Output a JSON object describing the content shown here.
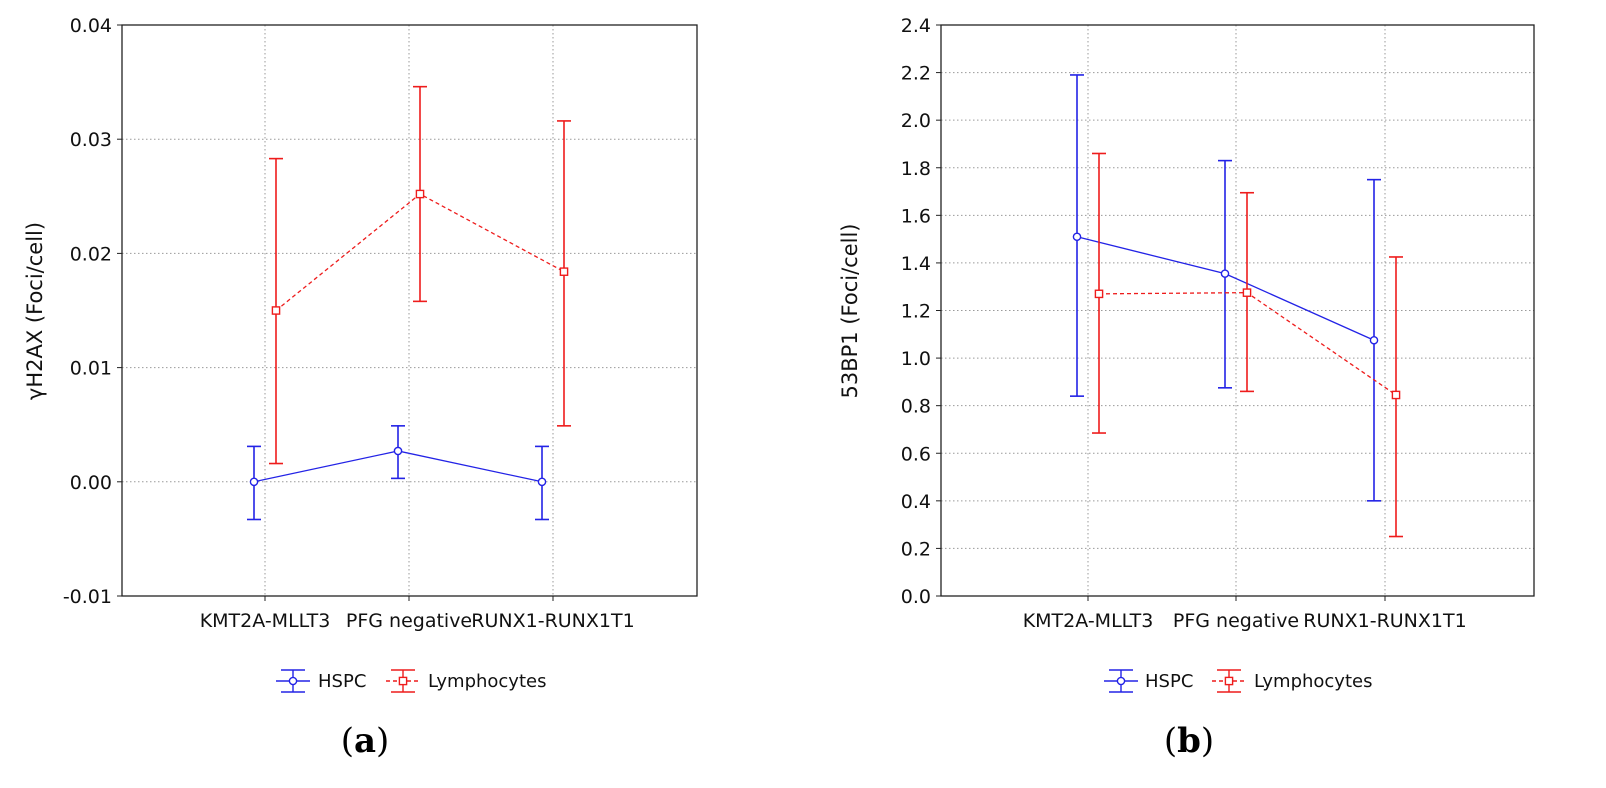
{
  "colors": {
    "hspc": "#2323e6",
    "lymphocytes": "#ee1c1c"
  },
  "chart_data": [
    {
      "type": "line",
      "caption": "(a)",
      "caption_letter": "a",
      "ylabel": "γH2AX (Foci/cell)",
      "ylim": [
        -0.01,
        0.04
      ],
      "yticks": [
        -0.01,
        0.0,
        0.01,
        0.02,
        0.03,
        0.04
      ],
      "ytick_labels": [
        "-0.01",
        "0.00",
        "0.01",
        "0.02",
        "0.03",
        "0.04"
      ],
      "categories": [
        "KMT2A-MLLT3",
        "PFG negative",
        "RUNX1-RUNX1T1"
      ],
      "series": [
        {
          "name": "HSPC",
          "marker": "circle",
          "linestyle": "solid",
          "values": [
            0.0,
            0.0027,
            0.0
          ],
          "lower": [
            -0.0033,
            0.0003,
            -0.0033
          ],
          "upper": [
            0.0031,
            0.0049,
            0.0031
          ]
        },
        {
          "name": "Lymphocytes",
          "marker": "square",
          "linestyle": "dashed",
          "values": [
            0.015,
            0.0252,
            0.0184
          ],
          "lower": [
            0.0016,
            0.0158,
            0.0049
          ],
          "upper": [
            0.0283,
            0.0346,
            0.0316
          ]
        }
      ],
      "legend": [
        "HSPC",
        "Lymphocytes"
      ]
    },
    {
      "type": "line",
      "caption": "(b)",
      "caption_letter": "b",
      "ylabel": "53BP1 (Foci/cell)",
      "ylim": [
        0.0,
        2.4
      ],
      "yticks": [
        0.0,
        0.2,
        0.4,
        0.6,
        0.8,
        1.0,
        1.2,
        1.4,
        1.6,
        1.8,
        2.0,
        2.2,
        2.4
      ],
      "ytick_labels": [
        "0.0",
        "0.2",
        "0.4",
        "0.6",
        "0.8",
        "1.0",
        "1.2",
        "1.4",
        "1.6",
        "1.8",
        "2.0",
        "2.2",
        "2.4"
      ],
      "categories": [
        "KMT2A-MLLT3",
        "PFG negative",
        "RUNX1-RUNX1T1"
      ],
      "series": [
        {
          "name": "HSPC",
          "marker": "circle",
          "linestyle": "solid",
          "values": [
            1.51,
            1.355,
            1.075
          ],
          "lower": [
            0.84,
            0.875,
            0.4
          ],
          "upper": [
            2.19,
            1.83,
            1.75
          ]
        },
        {
          "name": "Lymphocytes",
          "marker": "square",
          "linestyle": "dashed",
          "values": [
            1.27,
            1.275,
            0.845
          ],
          "lower": [
            0.685,
            0.86,
            0.25
          ],
          "upper": [
            1.86,
            1.695,
            1.425
          ]
        }
      ],
      "legend": [
        "HSPC",
        "Lymphocytes"
      ]
    }
  ]
}
